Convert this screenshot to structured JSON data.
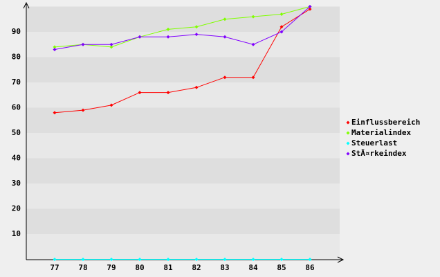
{
  "chart_data": {
    "type": "line",
    "categories": [
      "77",
      "78",
      "79",
      "80",
      "81",
      "82",
      "83",
      "84",
      "85",
      "86"
    ],
    "series": [
      {
        "name": "Einflussbereich",
        "color": "#ff0000",
        "values": [
          58,
          59,
          61,
          66,
          66,
          68,
          72,
          72,
          92,
          99
        ]
      },
      {
        "name": "Materialindex",
        "color": "#80ff00",
        "values": [
          84,
          85,
          84,
          88,
          91,
          92,
          95,
          96,
          97,
          100
        ]
      },
      {
        "name": "Steuerlast",
        "color": "#00ffff",
        "values": [
          0,
          0,
          0,
          0,
          0,
          0,
          0,
          0,
          0,
          0
        ]
      },
      {
        "name": "StÃ¤rkeindex",
        "color": "#8000ff",
        "values": [
          83,
          85,
          85,
          88,
          88,
          89,
          88,
          85,
          90,
          100
        ]
      }
    ],
    "ylim": [
      0,
      100
    ],
    "yticks": [
      10,
      20,
      30,
      40,
      50,
      60,
      70,
      80,
      90
    ],
    "grid": true
  }
}
